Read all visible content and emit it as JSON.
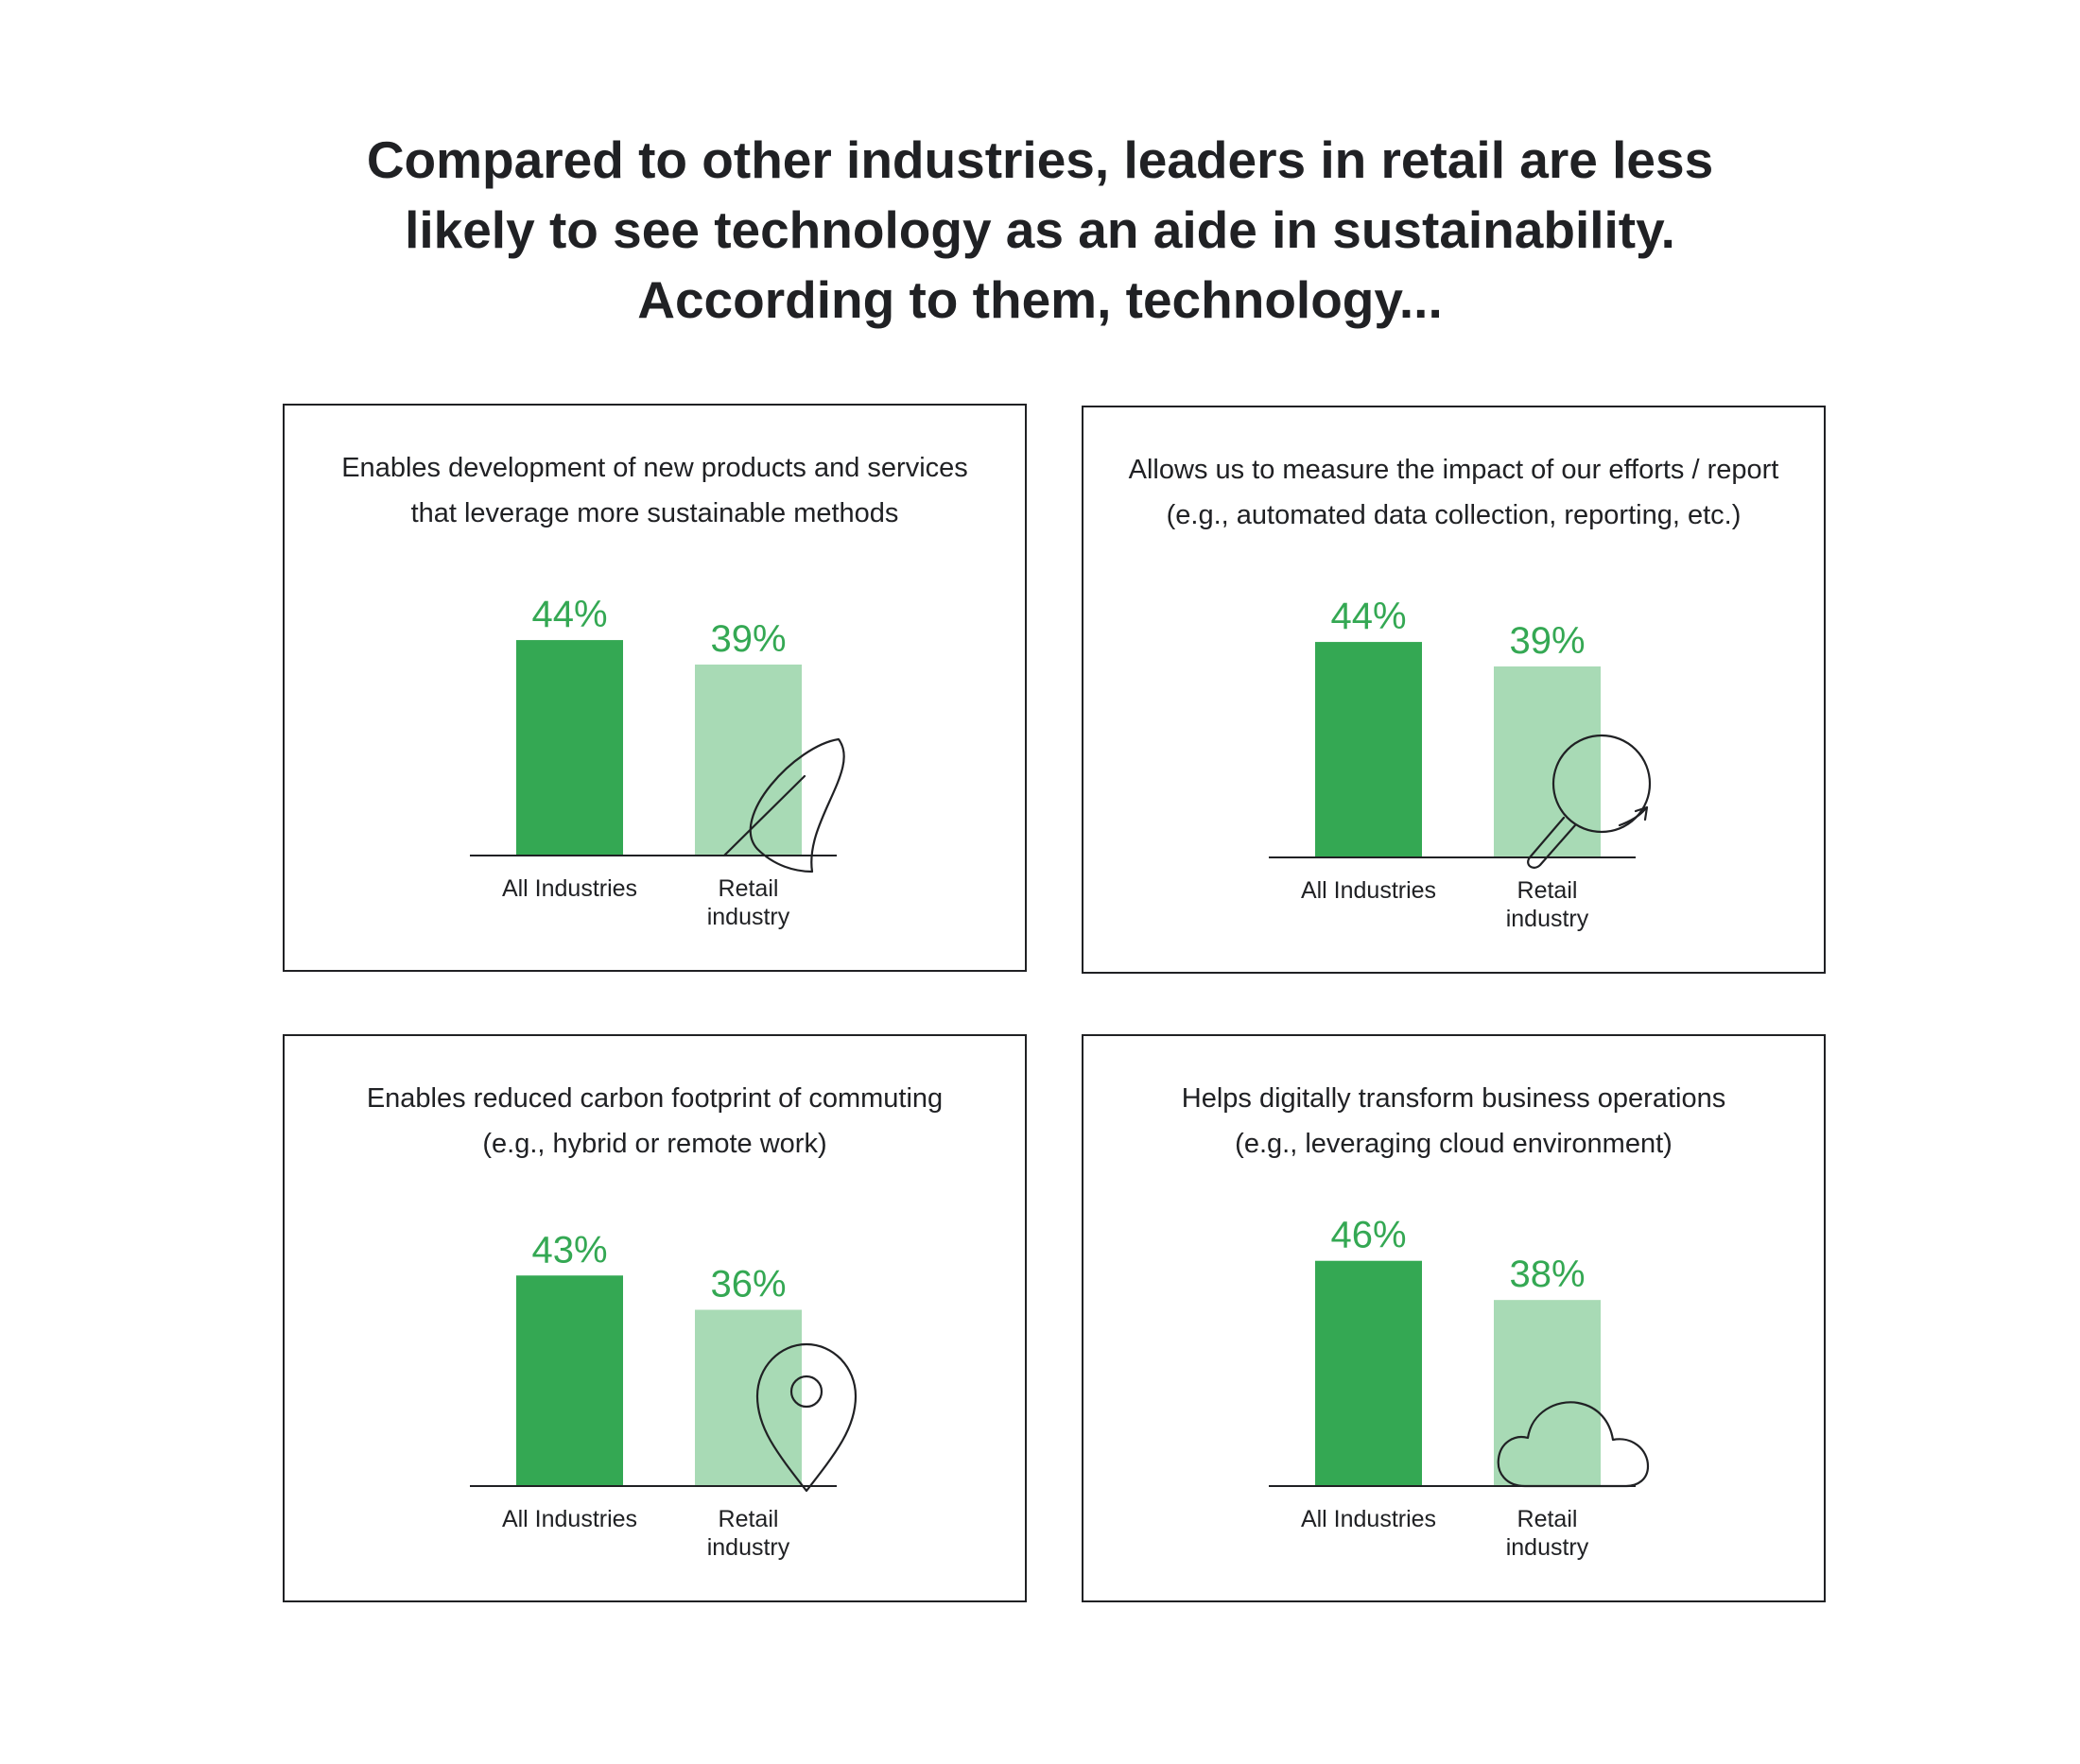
{
  "headline": {
    "line1": "Compared to other industries, leaders in retail are less",
    "line2": "likely to see technology as an aide in sustainability.",
    "line3": "According to them, technology..."
  },
  "colors": {
    "all_industries": "#34a853",
    "retail_industry": "#a8dab5",
    "value_label": "#34a853",
    "text": "#202124"
  },
  "chart_data": [
    {
      "type": "bar",
      "title_line1": "Enables development of new products and services",
      "title_line2": "that leverage more sustainable methods",
      "categories": [
        "All Industries",
        "Retail|industry"
      ],
      "values": [
        44,
        39
      ],
      "value_labels": [
        "44%",
        "39%"
      ],
      "icon": "leaf-icon"
    },
    {
      "type": "bar",
      "title_line1": "Allows us to measure the impact of our efforts / report",
      "title_line2": "(e.g., automated data collection, reporting, etc.)",
      "categories": [
        "All Industries",
        "Retail|industry"
      ],
      "values": [
        44,
        39
      ],
      "value_labels": [
        "44%",
        "39%"
      ],
      "icon": "magnifier-icon"
    },
    {
      "type": "bar",
      "title_line1": "Enables reduced carbon footprint of commuting",
      "title_line2": "(e.g., hybrid or remote work)",
      "categories": [
        "All Industries",
        "Retail|industry"
      ],
      "values": [
        43,
        36
      ],
      "value_labels": [
        "43%",
        "36%"
      ],
      "icon": "location-pin-icon"
    },
    {
      "type": "bar",
      "title_line1": "Helps digitally transform business operations",
      "title_line2": "(e.g., leveraging cloud environment)",
      "categories": [
        "All Industries",
        "Retail|industry"
      ],
      "values": [
        46,
        38
      ],
      "value_labels": [
        "46%",
        "38%"
      ],
      "icon": "cloud-icon"
    }
  ]
}
